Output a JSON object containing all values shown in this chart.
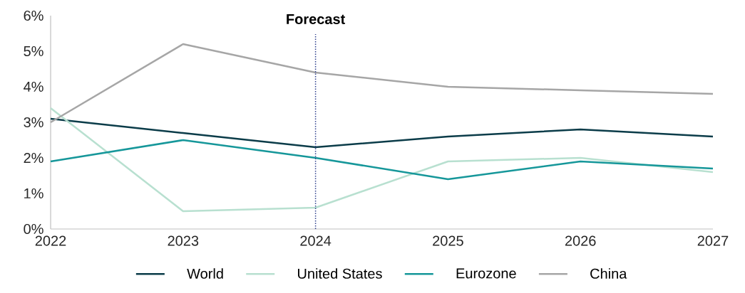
{
  "chart_data": {
    "type": "line",
    "x": [
      2022,
      2023,
      2024,
      2025,
      2026,
      2027
    ],
    "series": [
      {
        "name": "World",
        "color": "#0b3c49",
        "values": [
          3.1,
          2.7,
          2.3,
          2.6,
          2.8,
          2.6
        ]
      },
      {
        "name": "United States",
        "color": "#b8e0d0",
        "values": [
          3.4,
          0.5,
          0.6,
          1.9,
          2.0,
          1.6
        ]
      },
      {
        "name": "Eurozone",
        "color": "#16979a",
        "values": [
          1.9,
          2.5,
          2.0,
          1.4,
          1.9,
          1.7
        ]
      },
      {
        "name": "China",
        "color": "#a6a6a6",
        "values": [
          3.0,
          5.2,
          4.4,
          4.0,
          3.9,
          3.8
        ]
      }
    ],
    "xlim": [
      2022,
      2027
    ],
    "xticks": [
      2022,
      2023,
      2024,
      2025,
      2026,
      2027
    ],
    "ylim": [
      0,
      6
    ],
    "yticks": [
      {
        "value": 0,
        "label": "0%"
      },
      {
        "value": 1,
        "label": "1%"
      },
      {
        "value": 2,
        "label": "2%"
      },
      {
        "value": 3,
        "label": "3%"
      },
      {
        "value": 4,
        "label": "4%"
      },
      {
        "value": 5,
        "label": "5%"
      },
      {
        "value": 6,
        "label": "6%"
      }
    ],
    "ref_lines": [
      {
        "axis": "x",
        "value": 2024,
        "label": "Forecast",
        "color": "#2d3e8c",
        "line_style": "dotted"
      }
    ],
    "legend": "bottom",
    "grid": false,
    "line_style": "solid",
    "marker": "none"
  }
}
